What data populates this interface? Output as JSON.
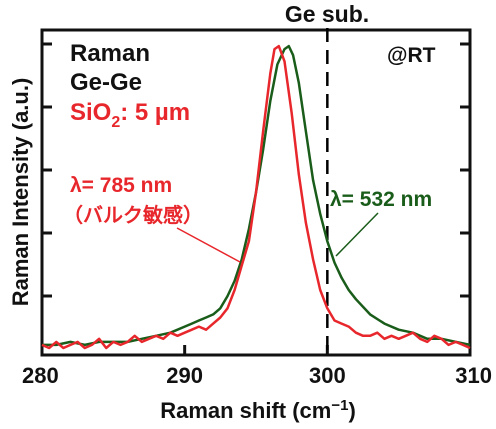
{
  "chart_data": {
    "type": "line",
    "xlabel": "Raman shift (cm",
    "xlabel_sup": "−1",
    "xlabel_end": ")",
    "ylabel": "Raman Intensity (a.u.)",
    "xlim": [
      280,
      310
    ],
    "ylim": [
      0,
      1.02
    ],
    "x_ticks": [
      280,
      290,
      300,
      310
    ],
    "grid": false,
    "reference_line": {
      "x": 300,
      "style": "dashed",
      "label": "Ge sub."
    },
    "annotations": {
      "title_lines": [
        "Raman",
        "Ge-Ge"
      ],
      "sio2_prefix": "SiO",
      "sio2_sub": "2",
      "sio2_suffix": ": 5 µm",
      "condition": "@RT",
      "red_label_line1": "λ= 785 nm",
      "red_label_line2": "（バルク敏感）",
      "green_label": "λ= 532 nm"
    },
    "colors": {
      "red": "#e8272c",
      "green": "#1a5c1a",
      "text": "#111111"
    },
    "series": [
      {
        "color": "#1a5c1a",
        "x": [
          280,
          281,
          282,
          283,
          284,
          285,
          286,
          287,
          288,
          289,
          290,
          290.5,
          291,
          291.5,
          292,
          292.5,
          293,
          293.5,
          294,
          294.5,
          295,
          295.5,
          296,
          296.5,
          297,
          297.3,
          297.6,
          298,
          298.5,
          299,
          299.5,
          300,
          300.5,
          301,
          301.5,
          302,
          303,
          304,
          305,
          306,
          307,
          308,
          309,
          310
        ],
        "y": [
          0.02,
          0.02,
          0.03,
          0.02,
          0.03,
          0.03,
          0.03,
          0.04,
          0.05,
          0.06,
          0.08,
          0.09,
          0.1,
          0.11,
          0.12,
          0.14,
          0.18,
          0.23,
          0.3,
          0.4,
          0.52,
          0.66,
          0.82,
          0.94,
          0.99,
          1.0,
          0.97,
          0.88,
          0.72,
          0.56,
          0.45,
          0.36,
          0.29,
          0.24,
          0.2,
          0.17,
          0.12,
          0.09,
          0.07,
          0.06,
          0.04,
          0.04,
          0.03,
          0.02
        ]
      },
      {
        "color": "#e8272c",
        "x": [
          280,
          280.5,
          281,
          281.5,
          282,
          282.5,
          283,
          283.5,
          284,
          284.5,
          285,
          285.5,
          286,
          286.5,
          287,
          287.5,
          288,
          288.5,
          289,
          289.5,
          290,
          290.5,
          291,
          291.5,
          292,
          292.5,
          293,
          293.5,
          294,
          294.5,
          295,
          295.5,
          296,
          296.3,
          296.6,
          297,
          297.5,
          298,
          298.5,
          299,
          299.5,
          300,
          300.5,
          301,
          301.5,
          302,
          302.5,
          303,
          303.5,
          304,
          304.5,
          305,
          305.5,
          306,
          306.5,
          307,
          307.5,
          308,
          308.5,
          309,
          309.5,
          310
        ],
        "y": [
          0.02,
          0.01,
          0.03,
          0.01,
          0.02,
          0.03,
          0.01,
          0.02,
          0.04,
          0.01,
          0.03,
          0.02,
          0.03,
          0.05,
          0.03,
          0.04,
          0.05,
          0.04,
          0.06,
          0.05,
          0.06,
          0.07,
          0.08,
          0.07,
          0.09,
          0.11,
          0.14,
          0.2,
          0.28,
          0.36,
          0.52,
          0.72,
          0.91,
          0.99,
          1.0,
          0.95,
          0.78,
          0.58,
          0.42,
          0.3,
          0.2,
          0.14,
          0.1,
          0.09,
          0.08,
          0.06,
          0.05,
          0.05,
          0.06,
          0.04,
          0.05,
          0.04,
          0.05,
          0.06,
          0.04,
          0.03,
          0.05,
          0.04,
          0.02,
          0.03,
          0.02,
          0.01
        ]
      }
    ]
  }
}
